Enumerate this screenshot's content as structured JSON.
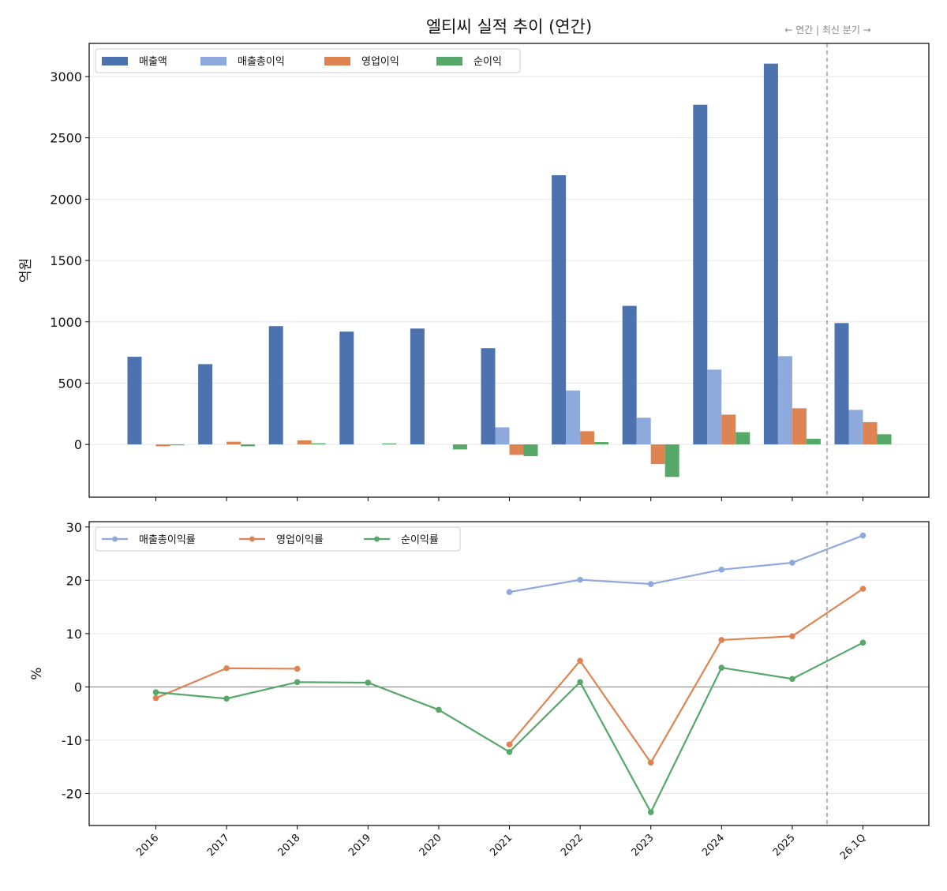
{
  "title": "엘티씨 실적 추이 (연간)",
  "divider_note": "← 연간 | 최신 분기 →",
  "colors": {
    "revenue": "#4c72b0",
    "gross": "#8eaadc",
    "operating": "#dd8452",
    "net": "#55a868",
    "divider": "#8c8c8c",
    "zero_line": "#808080",
    "grid": "#e6e6e6"
  },
  "chart_data": [
    {
      "type": "bar",
      "title": "엘티씨 실적 추이 (연간)",
      "ylabel": "억원",
      "ylim": [
        -430,
        3270
      ],
      "yticks": [
        0,
        500,
        1000,
        1500,
        2000,
        2500,
        3000
      ],
      "ytick_labels": [
        "0",
        "500",
        "1000",
        "1500",
        "2000",
        "2500",
        "3000"
      ],
      "categories": [
        "2016",
        "2017",
        "2018",
        "2019",
        "2020",
        "2021",
        "2022",
        "2023",
        "2024",
        "2025",
        "26.1Q"
      ],
      "grid": "horizontal",
      "legend_position": "top-left",
      "series": [
        {
          "name": "매출액",
          "color_key": "revenue",
          "values": [
            715,
            655,
            965,
            920,
            945,
            785,
            2195,
            1130,
            2770,
            3105,
            990
          ]
        },
        {
          "name": "매출총이익",
          "color_key": "gross",
          "values": [
            null,
            null,
            null,
            null,
            null,
            140,
            440,
            218,
            610,
            720,
            282
          ]
        },
        {
          "name": "영업이익",
          "color_key": "operating",
          "values": [
            -15,
            23,
            33,
            null,
            null,
            -85,
            108,
            -160,
            243,
            295,
            182
          ]
        },
        {
          "name": "순이익",
          "color_key": "net",
          "values": [
            -7,
            -15,
            9,
            8,
            -40,
            -95,
            20,
            -265,
            100,
            47,
            83
          ]
        }
      ]
    },
    {
      "type": "line",
      "ylabel": "%",
      "ylim": [
        -26,
        31
      ],
      "yticks": [
        -20,
        -10,
        0,
        10,
        20,
        30
      ],
      "ytick_labels": [
        "-20",
        "-10",
        "0",
        "10",
        "20",
        "30"
      ],
      "categories": [
        "2016",
        "2017",
        "2018",
        "2019",
        "2020",
        "2021",
        "2022",
        "2023",
        "2024",
        "2025",
        "26.1Q"
      ],
      "grid": "horizontal",
      "legend_position": "top-left",
      "series": [
        {
          "name": "매출총이익률",
          "color_key": "gross",
          "values": [
            null,
            null,
            null,
            null,
            null,
            17.8,
            20.1,
            19.3,
            22.0,
            23.3,
            28.4
          ]
        },
        {
          "name": "영업이익률",
          "color_key": "operating",
          "values": [
            -2.1,
            3.5,
            3.4,
            null,
            null,
            -10.8,
            4.9,
            -14.2,
            8.8,
            9.5,
            18.4
          ]
        },
        {
          "name": "순이익률",
          "color_key": "net",
          "values": [
            -1.0,
            -2.2,
            0.9,
            0.8,
            -4.3,
            -12.2,
            0.9,
            -23.5,
            3.6,
            1.5,
            8.3
          ]
        }
      ]
    }
  ]
}
